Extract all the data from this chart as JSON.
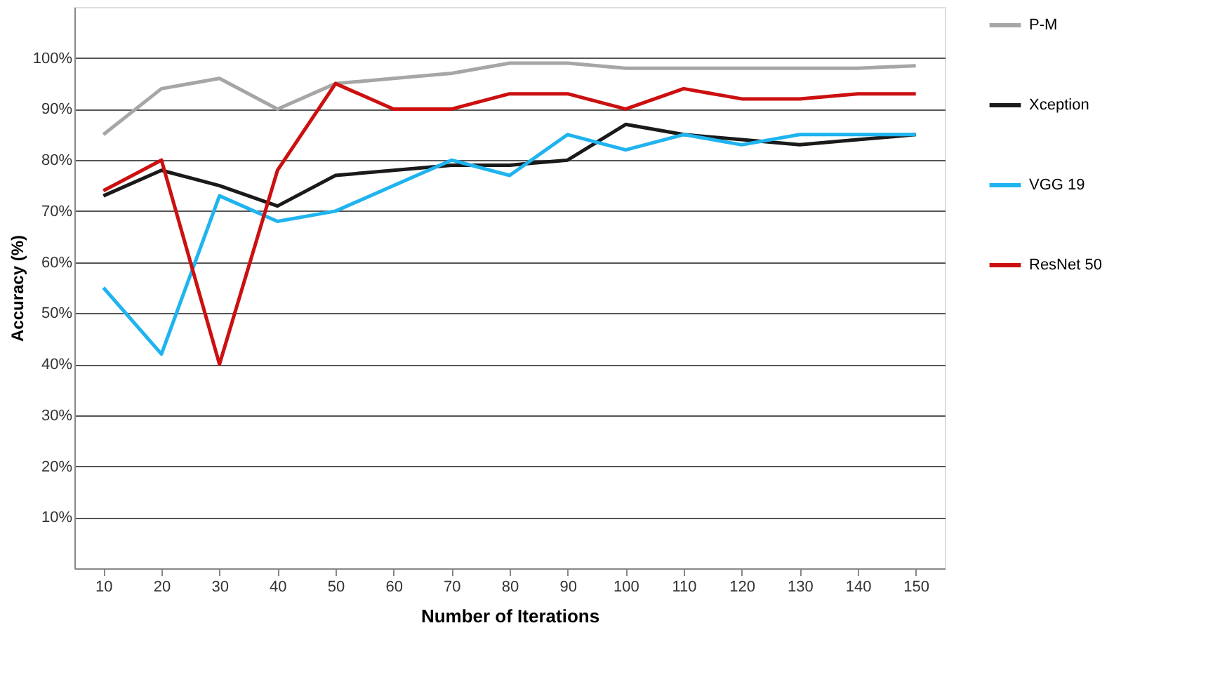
{
  "chart_data": {
    "type": "line",
    "xlabel": "Number of Iterations",
    "ylabel": "Accuracy (%)",
    "categories": [
      "10",
      "20",
      "30",
      "40",
      "50",
      "60",
      "70",
      "80",
      "90",
      "100",
      "110",
      "120",
      "130",
      "140",
      "150"
    ],
    "series": [
      {
        "name": "P-M",
        "color": "#a6a6a6",
        "values": [
          85,
          94,
          96,
          90,
          95,
          96,
          97,
          99,
          99,
          98,
          98,
          98,
          98,
          98,
          98.5
        ]
      },
      {
        "name": "Xception",
        "color": "#1a1a1a",
        "values": [
          73,
          78,
          75,
          71,
          77,
          78,
          79,
          79,
          80,
          87,
          85,
          84,
          83,
          84,
          85
        ]
      },
      {
        "name": "VGG 19",
        "color": "#1fb4ef",
        "values": [
          55,
          42,
          73,
          68,
          70,
          75,
          80,
          77,
          85,
          82,
          85,
          83,
          85,
          85,
          85
        ]
      },
      {
        "name": "ResNet 50",
        "color": "#cc1010",
        "values": [
          74,
          80,
          40,
          78,
          95,
          90,
          90,
          93,
          93,
          90,
          94,
          92,
          92,
          93,
          93
        ]
      }
    ],
    "ylim": [
      0,
      110
    ],
    "yticks": [
      {
        "value": 10,
        "label": "10%"
      },
      {
        "value": 20,
        "label": "20%"
      },
      {
        "value": 30,
        "label": "30%"
      },
      {
        "value": 40,
        "label": "40%"
      },
      {
        "value": 50,
        "label": "50%"
      },
      {
        "value": 60,
        "label": "60%"
      },
      {
        "value": 70,
        "label": "70%"
      },
      {
        "value": 80,
        "label": "80%"
      },
      {
        "value": 90,
        "label": "90%"
      },
      {
        "value": 100,
        "label": "100%"
      }
    ],
    "grid": "y",
    "legend": "top right",
    "marker": "none",
    "line_style": "solid"
  }
}
